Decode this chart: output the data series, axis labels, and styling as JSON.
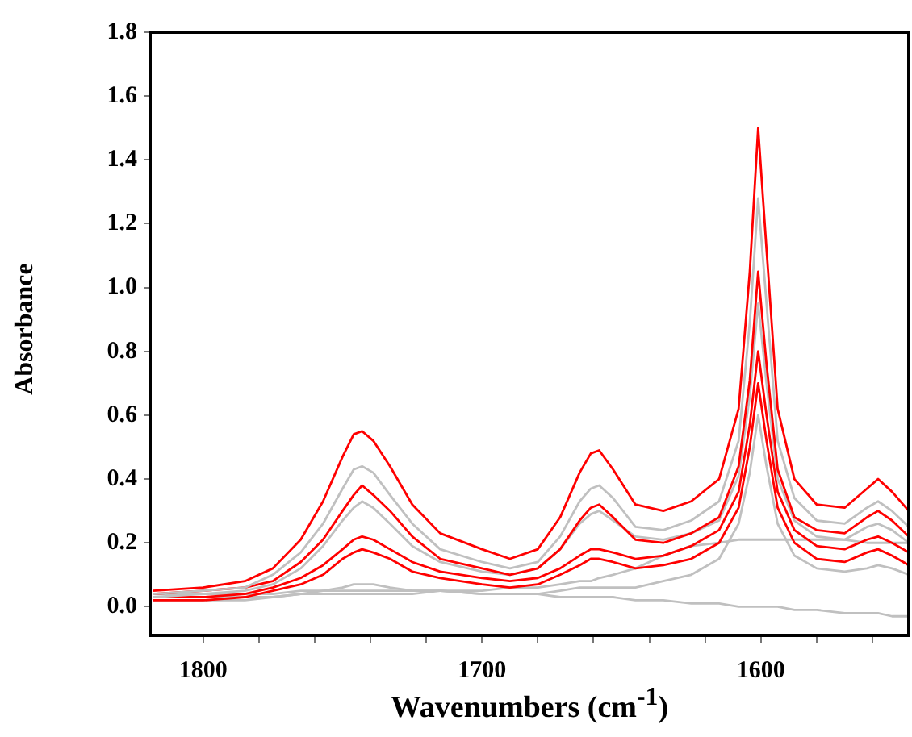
{
  "chart_data": {
    "type": "line",
    "xlabel": "Wavenumbers (cm$^{-1}$)",
    "ylabel": "Absorbance",
    "marker": "none",
    "line_style": "solid",
    "grid": false,
    "xlim": [
      1819,
      1547
    ],
    "ylim": [
      -0.09,
      1.8
    ],
    "xticks": [
      1800,
      1700,
      1600,
      {
        "value": 1780,
        "label": null
      },
      {
        "value": 1760,
        "label": null
      },
      {
        "value": 1740,
        "label": null
      },
      {
        "value": 1720,
        "label": null
      },
      {
        "value": 1680,
        "label": null
      },
      {
        "value": 1660,
        "label": null
      },
      {
        "value": 1640,
        "label": null
      },
      {
        "value": 1620,
        "label": null
      },
      {
        "value": 1580,
        "label": null
      },
      {
        "value": 1560,
        "label": null
      }
    ],
    "yticks": [
      {
        "value": 0,
        "label": "0.0"
      },
      {
        "value": 0.2,
        "label": "0.2"
      },
      {
        "value": 0.4,
        "label": "0.4"
      },
      {
        "value": 0.6,
        "label": "0.6"
      },
      {
        "value": 0.8,
        "label": "0.8"
      },
      {
        "value": 1,
        "label": "1.0"
      },
      {
        "value": 1.2,
        "label": "1.2"
      },
      {
        "value": 1.4,
        "label": "1.4"
      },
      {
        "value": 1.6,
        "label": "1.6"
      },
      {
        "value": 1.8,
        "label": "1.8"
      }
    ],
    "x": [
      1818,
      1800,
      1785,
      1775,
      1765,
      1757,
      1750,
      1746,
      1743,
      1739,
      1733,
      1725,
      1715,
      1700,
      1690,
      1680,
      1672,
      1665,
      1661,
      1658,
      1653,
      1645,
      1635,
      1625,
      1615,
      1608,
      1604,
      1601,
      1598,
      1594,
      1588,
      1580,
      1570,
      1562,
      1558,
      1553,
      1547
    ],
    "series": [
      {
        "color": "#ff0000",
        "values": [
          0.05,
          0.06,
          0.08,
          0.12,
          0.21,
          0.33,
          0.47,
          0.54,
          0.55,
          0.52,
          0.44,
          0.32,
          0.23,
          0.18,
          0.15,
          0.18,
          0.28,
          0.42,
          0.48,
          0.49,
          0.43,
          0.32,
          0.3,
          0.33,
          0.4,
          0.62,
          1.05,
          1.5,
          1.12,
          0.62,
          0.4,
          0.32,
          0.31,
          0.37,
          0.4,
          0.36,
          0.3
        ]
      },
      {
        "color": "#c0c0c0",
        "values": [
          0.04,
          0.05,
          0.06,
          0.1,
          0.17,
          0.26,
          0.37,
          0.43,
          0.44,
          0.42,
          0.35,
          0.26,
          0.18,
          0.14,
          0.12,
          0.14,
          0.22,
          0.33,
          0.37,
          0.38,
          0.34,
          0.25,
          0.24,
          0.27,
          0.33,
          0.52,
          0.89,
          1.28,
          0.95,
          0.52,
          0.34,
          0.27,
          0.26,
          0.31,
          0.33,
          0.3,
          0.25
        ]
      },
      {
        "color": "#ff0000",
        "values": [
          0.04,
          0.05,
          0.06,
          0.08,
          0.14,
          0.21,
          0.3,
          0.35,
          0.38,
          0.35,
          0.3,
          0.22,
          0.15,
          0.12,
          0.1,
          0.12,
          0.18,
          0.27,
          0.31,
          0.32,
          0.28,
          0.21,
          0.2,
          0.23,
          0.28,
          0.44,
          0.71,
          1.05,
          0.76,
          0.43,
          0.28,
          0.24,
          0.23,
          0.28,
          0.3,
          0.27,
          0.22
        ]
      },
      {
        "color": "#c0c0c0",
        "values": [
          0.03,
          0.04,
          0.05,
          0.07,
          0.12,
          0.19,
          0.27,
          0.31,
          0.33,
          0.31,
          0.26,
          0.19,
          0.14,
          0.11,
          0.1,
          0.12,
          0.18,
          0.26,
          0.29,
          0.3,
          0.27,
          0.22,
          0.21,
          0.23,
          0.27,
          0.41,
          0.66,
          0.95,
          0.7,
          0.4,
          0.27,
          0.22,
          0.21,
          0.25,
          0.26,
          0.24,
          0.2
        ]
      },
      {
        "color": "#ff0000",
        "values": [
          0.03,
          0.03,
          0.04,
          0.06,
          0.09,
          0.13,
          0.18,
          0.21,
          0.22,
          0.21,
          0.18,
          0.14,
          0.11,
          0.09,
          0.08,
          0.09,
          0.12,
          0.16,
          0.18,
          0.18,
          0.17,
          0.15,
          0.16,
          0.19,
          0.24,
          0.36,
          0.57,
          0.8,
          0.6,
          0.36,
          0.24,
          0.19,
          0.18,
          0.21,
          0.22,
          0.2,
          0.17
        ]
      },
      {
        "color": "#ff0000",
        "values": [
          0.02,
          0.02,
          0.03,
          0.05,
          0.07,
          0.1,
          0.15,
          0.17,
          0.18,
          0.17,
          0.15,
          0.11,
          0.09,
          0.07,
          0.06,
          0.07,
          0.1,
          0.13,
          0.15,
          0.15,
          0.14,
          0.12,
          0.13,
          0.15,
          0.2,
          0.31,
          0.5,
          0.7,
          0.52,
          0.31,
          0.2,
          0.15,
          0.14,
          0.17,
          0.18,
          0.16,
          0.13
        ]
      },
      {
        "color": "#c0c0c0",
        "values": [
          0.02,
          0.02,
          0.02,
          0.03,
          0.04,
          0.05,
          0.06,
          0.07,
          0.07,
          0.07,
          0.06,
          0.05,
          0.05,
          0.04,
          0.04,
          0.04,
          0.05,
          0.06,
          0.06,
          0.06,
          0.06,
          0.06,
          0.08,
          0.1,
          0.15,
          0.26,
          0.42,
          0.6,
          0.44,
          0.26,
          0.16,
          0.12,
          0.11,
          0.12,
          0.13,
          0.12,
          0.1
        ]
      },
      {
        "color": "#c0c0c0",
        "values": [
          0.03,
          0.03,
          0.03,
          0.03,
          0.04,
          0.04,
          0.04,
          0.04,
          0.04,
          0.04,
          0.04,
          0.04,
          0.05,
          0.05,
          0.06,
          0.06,
          0.07,
          0.08,
          0.08,
          0.09,
          0.1,
          0.12,
          0.16,
          0.19,
          0.2,
          0.21,
          0.21,
          0.21,
          0.21,
          0.21,
          0.21,
          0.21,
          0.21,
          0.2,
          0.2,
          0.2,
          0.2
        ]
      },
      {
        "color": "#c0c0c0",
        "values": [
          0.04,
          0.04,
          0.04,
          0.04,
          0.05,
          0.05,
          0.05,
          0.05,
          0.05,
          0.05,
          0.05,
          0.05,
          0.05,
          0.04,
          0.04,
          0.04,
          0.03,
          0.03,
          0.03,
          0.03,
          0.03,
          0.02,
          0.02,
          0.01,
          0.01,
          0.0,
          0.0,
          0.0,
          0.0,
          0.0,
          -0.01,
          -0.01,
          -0.02,
          -0.02,
          -0.02,
          -0.03,
          -0.03
        ]
      }
    ]
  }
}
